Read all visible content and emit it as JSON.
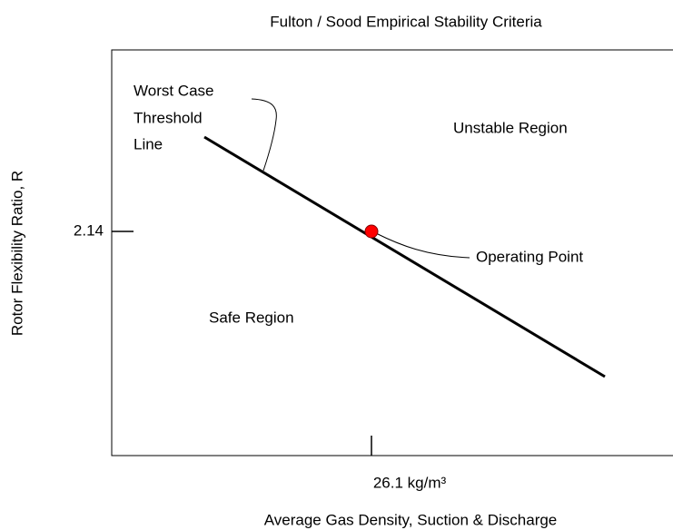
{
  "title": "Fulton / Sood Empirical Stability Criteria",
  "x_axis": {
    "label": "Average Gas Density, Suction & Discharge",
    "tick": "26.1 kg/m³"
  },
  "y_axis": {
    "label": "Rotor Flexibility Ratio, R",
    "tick": "2.14"
  },
  "annotations": {
    "threshold": [
      "Worst Case",
      "Threshold",
      "Line"
    ],
    "operating_point": "Operating Point",
    "unstable": "Unstable Region",
    "safe": "Safe Region"
  }
}
